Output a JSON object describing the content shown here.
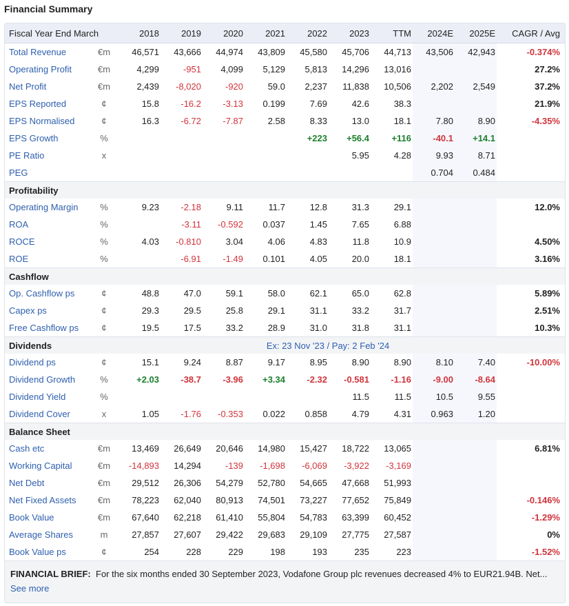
{
  "title": "Financial Summary",
  "header": {
    "label": "Fiscal Year End March",
    "columns": [
      "2018",
      "2019",
      "2020",
      "2021",
      "2022",
      "2023",
      "TTM",
      "2024E",
      "2025E"
    ],
    "cagr": "CAGR / Avg"
  },
  "colors": {
    "link": "#2e5fae",
    "negative": "#d0343c",
    "positive": "#1c7f2c",
    "header_bg": "#ebeef7",
    "estimate_bg": "#f5f7fc"
  },
  "sections": [
    {
      "title": "",
      "note": "",
      "rows": [
        {
          "label": "Total Revenue",
          "unit": "€m",
          "values": [
            "46,571",
            "43,666",
            "44,974",
            "43,809",
            "45,580",
            "45,706",
            "44,713",
            "43,506",
            "42,943"
          ],
          "cagr": "-0.374%"
        },
        {
          "label": "Operating Profit",
          "unit": "€m",
          "values": [
            "4,299",
            "-951",
            "4,099",
            "5,129",
            "5,813",
            "14,296",
            "13,016",
            "",
            ""
          ],
          "cagr": "27.2%"
        },
        {
          "label": "Net Profit",
          "unit": "€m",
          "values": [
            "2,439",
            "-8,020",
            "-920",
            "59.0",
            "2,237",
            "11,838",
            "10,506",
            "2,202",
            "2,549"
          ],
          "cagr": "37.2%"
        },
        {
          "label": "EPS Reported",
          "unit": "¢",
          "values": [
            "15.8",
            "-16.2",
            "-3.13",
            "0.199",
            "7.69",
            "42.6",
            "38.3",
            "",
            ""
          ],
          "cagr": "21.9%"
        },
        {
          "label": "EPS Normalised",
          "unit": "¢",
          "values": [
            "16.3",
            "-6.72",
            "-7.87",
            "2.58",
            "8.33",
            "13.0",
            "18.1",
            "7.80",
            "8.90"
          ],
          "cagr": "-4.35%"
        },
        {
          "label": "EPS Growth",
          "unit": "%",
          "growth": true,
          "values": [
            "",
            "",
            "",
            "",
            "+223",
            "+56.4",
            "+116",
            "-40.1",
            "+14.1"
          ],
          "cagr": ""
        },
        {
          "label": "PE Ratio",
          "unit": "x",
          "values": [
            "",
            "",
            "",
            "",
            "",
            "5.95",
            "4.28",
            "9.93",
            "8.71"
          ],
          "cagr": ""
        },
        {
          "label": "PEG",
          "unit": "",
          "values": [
            "",
            "",
            "",
            "",
            "",
            "",
            "",
            "0.704",
            "0.484"
          ],
          "cagr": ""
        }
      ]
    },
    {
      "title": "Profitability",
      "note": "",
      "rows": [
        {
          "label": "Operating Margin",
          "unit": "%",
          "values": [
            "9.23",
            "-2.18",
            "9.11",
            "11.7",
            "12.8",
            "31.3",
            "29.1",
            "",
            ""
          ],
          "cagr": "12.0%"
        },
        {
          "label": "ROA",
          "unit": "%",
          "values": [
            "",
            "-3.11",
            "-0.592",
            "0.037",
            "1.45",
            "7.65",
            "6.88",
            "",
            ""
          ],
          "cagr": ""
        },
        {
          "label": "ROCE",
          "unit": "%",
          "values": [
            "4.03",
            "-0.810",
            "3.04",
            "4.06",
            "4.83",
            "11.8",
            "10.9",
            "",
            ""
          ],
          "cagr": "4.50%"
        },
        {
          "label": "ROE",
          "unit": "%",
          "values": [
            "",
            "-6.91",
            "-1.49",
            "0.101",
            "4.05",
            "20.0",
            "18.1",
            "",
            ""
          ],
          "cagr": "3.16%"
        }
      ]
    },
    {
      "title": "Cashflow",
      "note": "",
      "rows": [
        {
          "label": "Op. Cashflow ps",
          "unit": "¢",
          "values": [
            "48.8",
            "47.0",
            "59.1",
            "58.0",
            "62.1",
            "65.0",
            "62.8",
            "",
            ""
          ],
          "cagr": "5.89%"
        },
        {
          "label": "Capex ps",
          "unit": "¢",
          "values": [
            "29.3",
            "29.5",
            "25.8",
            "29.1",
            "31.1",
            "33.2",
            "31.7",
            "",
            ""
          ],
          "cagr": "2.51%"
        },
        {
          "label": "Free Cashflow ps",
          "unit": "¢",
          "values": [
            "19.5",
            "17.5",
            "33.2",
            "28.9",
            "31.0",
            "31.8",
            "31.1",
            "",
            ""
          ],
          "cagr": "10.3%"
        }
      ]
    },
    {
      "title": "Dividends",
      "note": "Ex: 23 Nov '23 / Pay: 2 Feb '24",
      "rows": [
        {
          "label": "Dividend ps",
          "unit": "¢",
          "values": [
            "15.1",
            "9.24",
            "8.87",
            "9.17",
            "8.95",
            "8.90",
            "8.90",
            "8.10",
            "7.40"
          ],
          "cagr": "-10.00%"
        },
        {
          "label": "Dividend Growth",
          "unit": "%",
          "growth": true,
          "values": [
            "+2.03",
            "-38.7",
            "-3.96",
            "+3.34",
            "-2.32",
            "-0.581",
            "-1.16",
            "-9.00",
            "-8.64"
          ],
          "cagr": ""
        },
        {
          "label": "Dividend Yield",
          "unit": "%",
          "values": [
            "",
            "",
            "",
            "",
            "",
            "11.5",
            "11.5",
            "10.5",
            "9.55"
          ],
          "cagr": ""
        },
        {
          "label": "Dividend Cover",
          "unit": "x",
          "values": [
            "1.05",
            "-1.76",
            "-0.353",
            "0.022",
            "0.858",
            "4.79",
            "4.31",
            "0.963",
            "1.20"
          ],
          "cagr": ""
        }
      ]
    },
    {
      "title": "Balance Sheet",
      "note": "",
      "rows": [
        {
          "label": "Cash etc",
          "unit": "€m",
          "values": [
            "13,469",
            "26,649",
            "20,646",
            "14,980",
            "15,427",
            "18,722",
            "13,065",
            "",
            ""
          ],
          "cagr": "6.81%"
        },
        {
          "label": "Working Capital",
          "unit": "€m",
          "values": [
            "-14,893",
            "14,294",
            "-139",
            "-1,698",
            "-6,069",
            "-3,922",
            "-3,169",
            "",
            ""
          ],
          "cagr": ""
        },
        {
          "label": "Net Debt",
          "unit": "€m",
          "values": [
            "29,512",
            "26,306",
            "54,279",
            "52,780",
            "54,665",
            "47,668",
            "51,993",
            "",
            ""
          ],
          "cagr": ""
        },
        {
          "label": "Net Fixed Assets",
          "unit": "€m",
          "values": [
            "78,223",
            "62,040",
            "80,913",
            "74,501",
            "73,227",
            "77,652",
            "75,849",
            "",
            ""
          ],
          "cagr": "-0.146%"
        },
        {
          "label": "Book Value",
          "unit": "€m",
          "values": [
            "67,640",
            "62,218",
            "61,410",
            "55,804",
            "54,783",
            "63,399",
            "60,452",
            "",
            ""
          ],
          "cagr": "-1.29%"
        },
        {
          "label": "Average Shares",
          "unit": "m",
          "values": [
            "27,857",
            "27,607",
            "29,422",
            "29,683",
            "29,109",
            "27,775",
            "27,587",
            "",
            ""
          ],
          "cagr": "0%"
        },
        {
          "label": "Book Value ps",
          "unit": "¢",
          "values": [
            "254",
            "228",
            "229",
            "198",
            "193",
            "235",
            "223",
            "",
            ""
          ],
          "cagr": "-1.52%"
        }
      ]
    }
  ],
  "brief": {
    "label": "FINANCIAL BRIEF:",
    "text": "For the six months ended 30 September 2023, Vodafone Group plc revenues decreased 4% to EUR21.94B. Net...",
    "link": "See more"
  }
}
